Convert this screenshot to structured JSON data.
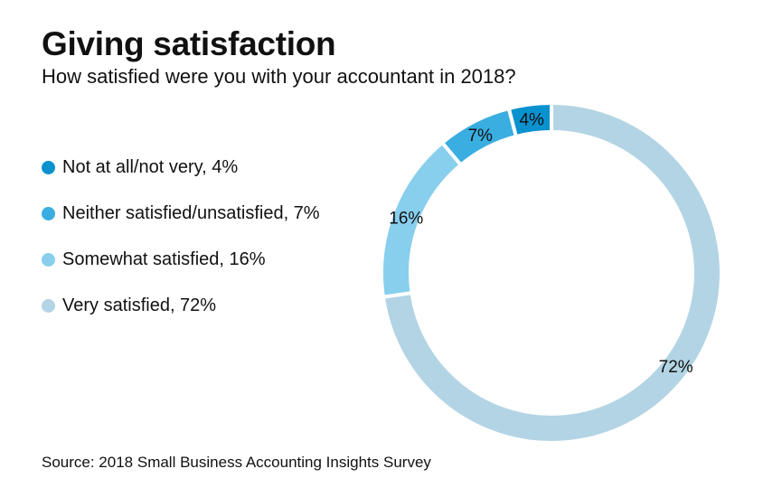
{
  "title": "Giving satisfaction",
  "subtitle": "How satisfied were you with your accountant in 2018?",
  "source": "Source: 2018 Small Business Accounting Insights Survey",
  "chart_data": {
    "type": "pie",
    "variant": "donut",
    "legend_position": "left",
    "slices": [
      {
        "label": "Not at all/not very, 4%",
        "value": 4,
        "data_label": "4%",
        "color": "#0a92cf"
      },
      {
        "label": "Neither satisfied/unsatisfied, 7%",
        "value": 7,
        "data_label": "7%",
        "color": "#3aaee0"
      },
      {
        "label": "Somewhat satisfied, 16%",
        "value": 16,
        "data_label": "16%",
        "color": "#88cfed"
      },
      {
        "label": "Very satisfied, 72%",
        "value": 72,
        "data_label": "72%",
        "color": "#b3d4e4"
      }
    ]
  }
}
